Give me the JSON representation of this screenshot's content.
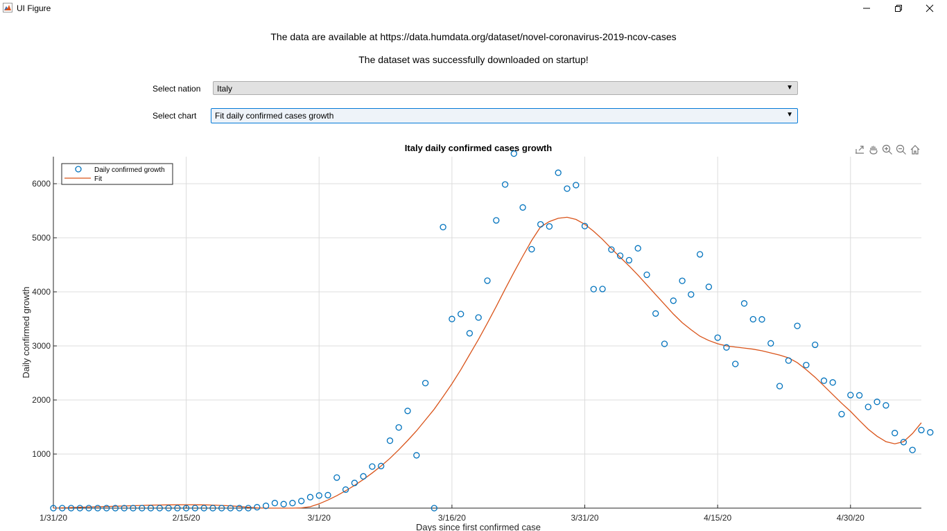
{
  "window": {
    "title": "UI Figure",
    "icons": [
      "matlab-icon",
      "minimize-icon",
      "maximize-icon",
      "close-icon"
    ]
  },
  "info": {
    "line1": "The data are available at https://data.humdata.org/dataset/novel-coronavirus-2019-ncov-cases",
    "line2": "The dataset was successfully downloaded on startup!"
  },
  "controls": {
    "nation_label": "Select nation",
    "nation_value": "Italy",
    "chart_label": "Select chart",
    "chart_value": "Fit daily confirmed cases growth"
  },
  "toolbar": {
    "icons": [
      "export-icon",
      "pan-icon",
      "zoom-in-icon",
      "zoom-out-icon",
      "home-icon"
    ]
  },
  "colors": {
    "markers": "#0072bd",
    "fit": "#d95319",
    "grid": "#dcdcdc"
  },
  "chart_data": {
    "type": "scatter",
    "title": "Italy daily confirmed cases growth",
    "xlabel": "Days since first confirmed case",
    "ylabel": "Daily confirmed growth",
    "x_start_date": "2020-01-31",
    "xlim": [
      0,
      98
    ],
    "ylim": [
      0,
      6500
    ],
    "xticks": [
      {
        "day": 0,
        "label": "1/31/20"
      },
      {
        "day": 15,
        "label": "2/15/20"
      },
      {
        "day": 30,
        "label": "3/1/20"
      },
      {
        "day": 45,
        "label": "3/16/20"
      },
      {
        "day": 60,
        "label": "3/31/20"
      },
      {
        "day": 75,
        "label": "4/15/20"
      },
      {
        "day": 90,
        "label": "4/30/20"
      }
    ],
    "yticks": [
      1000,
      2000,
      3000,
      4000,
      5000,
      6000
    ],
    "grid": true,
    "legend": {
      "location": "top-left",
      "entries": [
        "Daily confirmed growth",
        "Fit"
      ]
    },
    "series": [
      {
        "name": "Daily confirmed growth",
        "style": "markers",
        "values": [
          0,
          0,
          0,
          0,
          0,
          0,
          0,
          0,
          0,
          0,
          0,
          0,
          0,
          0,
          0,
          0,
          0,
          0,
          0,
          0,
          0,
          0,
          0,
          17,
          42,
          93,
          74,
          93,
          131,
          202,
          233,
          240,
          566,
          342,
          466,
          587,
          769,
          778,
          1247,
          1492,
          1797,
          977,
          2313,
          0,
          5198,
          3497,
          3590,
          3233,
          3526,
          4207,
          5322,
          5986,
          6557,
          5560,
          4789,
          5249,
          5210,
          6203,
          5909,
          5974,
          5217,
          4050,
          4053,
          4782,
          4668,
          4585,
          4805,
          4316,
          3599,
          3039,
          3836,
          4204,
          3951,
          4694,
          4092,
          3153,
          2972,
          2667,
          3786,
          3493,
          3491,
          3047,
          2256,
          2729,
          3370,
          2646,
          3021,
          2357,
          2324,
          1739,
          2091,
          2086,
          1872,
          1965,
          1900,
          1389,
          1221,
          1075,
          1444,
          1401
        ]
      },
      {
        "name": "Fit",
        "style": "line",
        "values": [
          0,
          5,
          10,
          15,
          20,
          25,
          30,
          35,
          40,
          45,
          50,
          55,
          58,
          60,
          62,
          63,
          62,
          60,
          56,
          50,
          42,
          30,
          15,
          5,
          0,
          0,
          0,
          0,
          5,
          25,
          80,
          150,
          230,
          320,
          420,
          530,
          650,
          780,
          920,
          1080,
          1250,
          1430,
          1630,
          1830,
          2060,
          2300,
          2560,
          2840,
          3120,
          3420,
          3730,
          4050,
          4360,
          4660,
          4950,
          5200,
          5300,
          5360,
          5380,
          5340,
          5250,
          5120,
          4970,
          4800,
          4640,
          4480,
          4310,
          4130,
          3950,
          3770,
          3590,
          3430,
          3300,
          3180,
          3100,
          3040,
          3000,
          2980,
          2960,
          2940,
          2910,
          2870,
          2830,
          2780,
          2690,
          2560,
          2420,
          2260,
          2100,
          1940,
          1790,
          1620,
          1460,
          1330,
          1230,
          1190,
          1230,
          1380,
          1580
        ]
      }
    ]
  }
}
